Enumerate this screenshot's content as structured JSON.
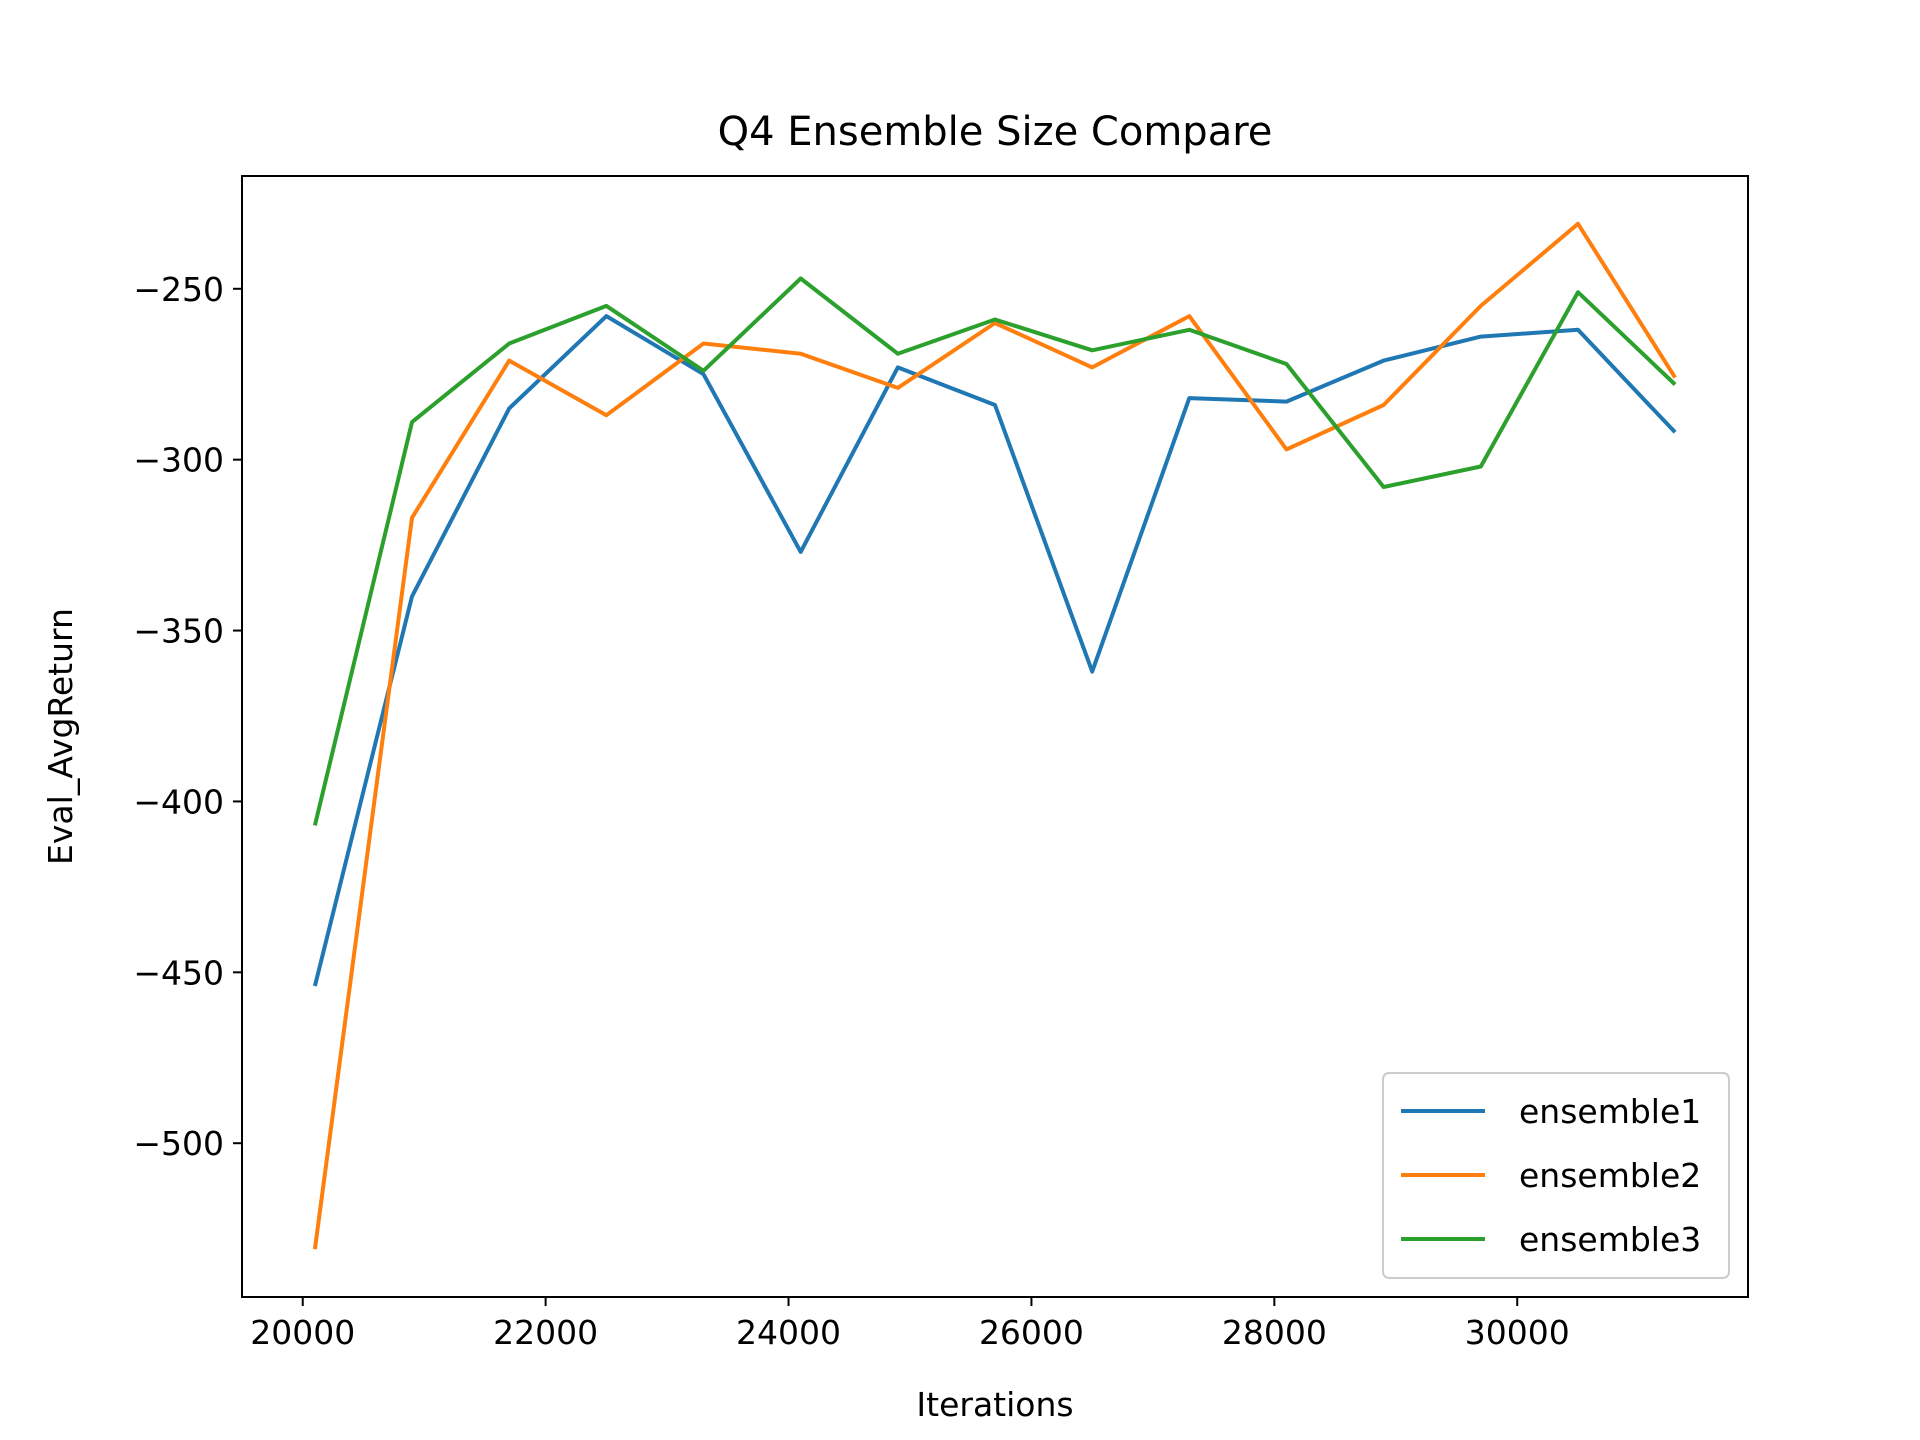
{
  "chart_data": {
    "type": "line",
    "title": "Q4 Ensemble Size Compare",
    "xlabel": "Iterations",
    "ylabel": "Eval_AvgReturn",
    "xlim": [
      19500,
      31900
    ],
    "ylim": [
      -545,
      -217
    ],
    "xticks": [
      20000,
      22000,
      24000,
      26000,
      28000,
      30000
    ],
    "yticks": [
      -250,
      -300,
      -350,
      -400,
      -450,
      -500
    ],
    "grid": false,
    "legend_position": "lower right",
    "x": [
      20100,
      20900,
      21700,
      22500,
      23300,
      24100,
      24900,
      25700,
      26500,
      27300,
      28100,
      28900,
      29700,
      30500,
      31300
    ],
    "series": [
      {
        "name": "ensemble1",
        "color": "#1f77b4",
        "values": [
          -454,
          -340,
          -285,
          -258,
          -275,
          -327,
          -273,
          -284,
          -362,
          -282,
          -283,
          -271,
          -264,
          -262,
          -292
        ]
      },
      {
        "name": "ensemble2",
        "color": "#ff7f0e",
        "values": [
          -531,
          -317,
          -271,
          -287,
          -266,
          -269,
          -279,
          -260,
          -273,
          -258,
          -297,
          -284,
          -255,
          -231,
          -276
        ]
      },
      {
        "name": "ensemble3",
        "color": "#2ca02c",
        "values": [
          -407,
          -289,
          -266,
          -255,
          -274,
          -247,
          -269,
          -259,
          -268,
          -262,
          -272,
          -308,
          -302,
          -251,
          -278
        ]
      }
    ]
  }
}
